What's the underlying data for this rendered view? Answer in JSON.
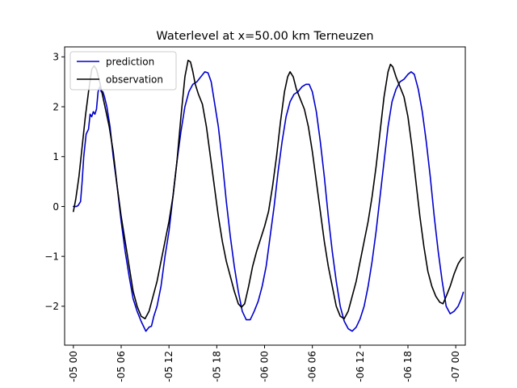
{
  "chart_data": {
    "type": "line",
    "title": "Waterlevel at x=50.00 km Terneuzen",
    "xlabel": "",
    "ylabel": "",
    "x_unit": "hours",
    "xlim": [
      -1.1,
      49.2
    ],
    "ylim": [
      -2.78,
      3.2
    ],
    "xticks": [
      {
        "value": 0,
        "label": "-05 00"
      },
      {
        "value": 6,
        "label": "-05 06"
      },
      {
        "value": 12,
        "label": "-05 12"
      },
      {
        "value": 18,
        "label": "-05 18"
      },
      {
        "value": 24,
        "label": "-06 00"
      },
      {
        "value": 30,
        "label": "-06 06"
      },
      {
        "value": 36,
        "label": "-06 12"
      },
      {
        "value": 42,
        "label": "-06 18"
      },
      {
        "value": 48,
        "label": "-07 00"
      }
    ],
    "yticks": [
      {
        "value": 3,
        "label": "3"
      },
      {
        "value": 2,
        "label": "2"
      },
      {
        "value": 1,
        "label": "1"
      },
      {
        "value": 0,
        "label": "0"
      },
      {
        "value": -1,
        "label": "−1"
      },
      {
        "value": -2,
        "label": "−2"
      }
    ],
    "grid": false,
    "legend": {
      "placement": "top-left"
    },
    "series": [
      {
        "name": "prediction",
        "color": "#0000cc",
        "points": [
          [
            0.0,
            0.0
          ],
          [
            0.4,
            0.0
          ],
          [
            0.6,
            0.02
          ],
          [
            0.9,
            0.1
          ],
          [
            1.1,
            0.5
          ],
          [
            1.3,
            1.0
          ],
          [
            1.6,
            1.45
          ],
          [
            1.9,
            1.55
          ],
          [
            2.1,
            1.85
          ],
          [
            2.3,
            1.8
          ],
          [
            2.5,
            1.9
          ],
          [
            2.7,
            1.85
          ],
          [
            2.9,
            1.95
          ],
          [
            3.1,
            2.3
          ],
          [
            3.3,
            2.4
          ],
          [
            3.5,
            2.3
          ],
          [
            3.7,
            2.3
          ],
          [
            3.9,
            2.2
          ],
          [
            4.2,
            2.0
          ],
          [
            4.6,
            1.6
          ],
          [
            5.0,
            1.0
          ],
          [
            5.5,
            0.4
          ],
          [
            6.0,
            -0.3
          ],
          [
            6.5,
            -0.9
          ],
          [
            7.0,
            -1.4
          ],
          [
            7.5,
            -1.85
          ],
          [
            8.0,
            -2.1
          ],
          [
            8.5,
            -2.3
          ],
          [
            9.1,
            -2.5
          ],
          [
            9.5,
            -2.42
          ],
          [
            9.8,
            -2.4
          ],
          [
            10.1,
            -2.2
          ],
          [
            10.5,
            -2.0
          ],
          [
            11.0,
            -1.6
          ],
          [
            11.5,
            -1.0
          ],
          [
            12.0,
            -0.5
          ],
          [
            12.5,
            0.2
          ],
          [
            13.0,
            0.9
          ],
          [
            13.5,
            1.5
          ],
          [
            14.0,
            2.0
          ],
          [
            14.5,
            2.3
          ],
          [
            15.0,
            2.45
          ],
          [
            15.5,
            2.5
          ],
          [
            16.0,
            2.6
          ],
          [
            16.5,
            2.7
          ],
          [
            16.9,
            2.68
          ],
          [
            17.3,
            2.5
          ],
          [
            17.7,
            2.1
          ],
          [
            18.2,
            1.6
          ],
          [
            18.7,
            0.9
          ],
          [
            19.2,
            0.1
          ],
          [
            19.7,
            -0.6
          ],
          [
            20.2,
            -1.2
          ],
          [
            20.7,
            -1.7
          ],
          [
            21.2,
            -2.1
          ],
          [
            21.7,
            -2.27
          ],
          [
            22.2,
            -2.27
          ],
          [
            22.7,
            -2.1
          ],
          [
            23.2,
            -1.9
          ],
          [
            23.7,
            -1.6
          ],
          [
            24.2,
            -1.2
          ],
          [
            24.7,
            -0.6
          ],
          [
            25.2,
            0.0
          ],
          [
            25.7,
            0.7
          ],
          [
            26.2,
            1.3
          ],
          [
            26.7,
            1.8
          ],
          [
            27.2,
            2.1
          ],
          [
            27.7,
            2.25
          ],
          [
            28.2,
            2.3
          ],
          [
            28.7,
            2.4
          ],
          [
            29.2,
            2.45
          ],
          [
            29.6,
            2.45
          ],
          [
            30.0,
            2.3
          ],
          [
            30.5,
            1.9
          ],
          [
            31.0,
            1.3
          ],
          [
            31.5,
            0.6
          ],
          [
            32.0,
            -0.2
          ],
          [
            32.5,
            -0.9
          ],
          [
            33.0,
            -1.5
          ],
          [
            33.5,
            -2.0
          ],
          [
            34.0,
            -2.3
          ],
          [
            34.5,
            -2.45
          ],
          [
            35.0,
            -2.5
          ],
          [
            35.5,
            -2.42
          ],
          [
            36.0,
            -2.25
          ],
          [
            36.5,
            -2.0
          ],
          [
            37.0,
            -1.6
          ],
          [
            37.5,
            -1.1
          ],
          [
            38.0,
            -0.5
          ],
          [
            38.5,
            0.2
          ],
          [
            39.0,
            0.9
          ],
          [
            39.5,
            1.6
          ],
          [
            40.0,
            2.1
          ],
          [
            40.5,
            2.35
          ],
          [
            41.0,
            2.5
          ],
          [
            41.5,
            2.55
          ],
          [
            42.0,
            2.65
          ],
          [
            42.4,
            2.7
          ],
          [
            42.8,
            2.65
          ],
          [
            43.3,
            2.35
          ],
          [
            43.8,
            1.9
          ],
          [
            44.3,
            1.3
          ],
          [
            44.8,
            0.6
          ],
          [
            45.3,
            -0.2
          ],
          [
            45.8,
            -0.9
          ],
          [
            46.3,
            -1.5
          ],
          [
            46.8,
            -2.0
          ],
          [
            47.3,
            -2.15
          ],
          [
            47.8,
            -2.1
          ],
          [
            48.3,
            -2.0
          ],
          [
            48.7,
            -1.85
          ],
          [
            48.95,
            -1.72
          ]
        ]
      },
      {
        "name": "observation",
        "color": "#000000",
        "points": [
          [
            0.0,
            -0.1
          ],
          [
            0.3,
            0.15
          ],
          [
            0.7,
            0.6
          ],
          [
            1.1,
            1.2
          ],
          [
            1.5,
            1.8
          ],
          [
            1.9,
            2.3
          ],
          [
            2.3,
            2.75
          ],
          [
            2.6,
            2.82
          ],
          [
            2.9,
            2.75
          ],
          [
            3.3,
            2.5
          ],
          [
            3.7,
            2.2
          ],
          [
            4.1,
            1.9
          ],
          [
            4.5,
            1.6
          ],
          [
            5.0,
            1.1
          ],
          [
            5.5,
            0.4
          ],
          [
            6.0,
            -0.2
          ],
          [
            6.5,
            -0.7
          ],
          [
            7.0,
            -1.2
          ],
          [
            7.5,
            -1.7
          ],
          [
            8.0,
            -2.0
          ],
          [
            8.5,
            -2.2
          ],
          [
            9.0,
            -2.25
          ],
          [
            9.5,
            -2.1
          ],
          [
            10.0,
            -1.8
          ],
          [
            10.5,
            -1.5
          ],
          [
            11.0,
            -1.1
          ],
          [
            11.5,
            -0.7
          ],
          [
            12.0,
            -0.3
          ],
          [
            12.5,
            0.2
          ],
          [
            13.0,
            0.9
          ],
          [
            13.5,
            1.8
          ],
          [
            14.0,
            2.6
          ],
          [
            14.4,
            2.93
          ],
          [
            14.7,
            2.9
          ],
          [
            15.0,
            2.7
          ],
          [
            15.3,
            2.45
          ],
          [
            15.7,
            2.25
          ],
          [
            16.2,
            2.05
          ],
          [
            16.7,
            1.6
          ],
          [
            17.2,
            1.0
          ],
          [
            17.7,
            0.4
          ],
          [
            18.2,
            -0.2
          ],
          [
            18.7,
            -0.7
          ],
          [
            19.2,
            -1.1
          ],
          [
            19.7,
            -1.4
          ],
          [
            20.2,
            -1.7
          ],
          [
            20.7,
            -1.95
          ],
          [
            21.1,
            -2.02
          ],
          [
            21.5,
            -1.95
          ],
          [
            22.0,
            -1.6
          ],
          [
            22.5,
            -1.2
          ],
          [
            23.0,
            -0.9
          ],
          [
            23.5,
            -0.65
          ],
          [
            24.0,
            -0.4
          ],
          [
            24.5,
            -0.1
          ],
          [
            25.0,
            0.4
          ],
          [
            25.5,
            1.0
          ],
          [
            26.0,
            1.7
          ],
          [
            26.5,
            2.3
          ],
          [
            26.9,
            2.6
          ],
          [
            27.2,
            2.7
          ],
          [
            27.6,
            2.6
          ],
          [
            28.0,
            2.35
          ],
          [
            28.5,
            2.15
          ],
          [
            29.0,
            1.95
          ],
          [
            29.5,
            1.6
          ],
          [
            30.0,
            1.1
          ],
          [
            30.5,
            0.5
          ],
          [
            31.0,
            -0.1
          ],
          [
            31.5,
            -0.7
          ],
          [
            32.0,
            -1.2
          ],
          [
            32.5,
            -1.6
          ],
          [
            33.0,
            -2.0
          ],
          [
            33.5,
            -2.2
          ],
          [
            34.0,
            -2.25
          ],
          [
            34.5,
            -2.1
          ],
          [
            35.0,
            -1.8
          ],
          [
            35.5,
            -1.5
          ],
          [
            36.0,
            -1.1
          ],
          [
            36.5,
            -0.7
          ],
          [
            37.0,
            -0.3
          ],
          [
            37.5,
            0.2
          ],
          [
            38.0,
            0.8
          ],
          [
            38.5,
            1.5
          ],
          [
            39.0,
            2.2
          ],
          [
            39.5,
            2.7
          ],
          [
            39.8,
            2.85
          ],
          [
            40.1,
            2.8
          ],
          [
            40.5,
            2.6
          ],
          [
            41.0,
            2.4
          ],
          [
            41.5,
            2.2
          ],
          [
            42.0,
            1.8
          ],
          [
            42.5,
            1.2
          ],
          [
            43.0,
            0.5
          ],
          [
            43.5,
            -0.2
          ],
          [
            44.0,
            -0.8
          ],
          [
            44.5,
            -1.3
          ],
          [
            45.0,
            -1.6
          ],
          [
            45.5,
            -1.8
          ],
          [
            46.0,
            -1.92
          ],
          [
            46.4,
            -1.95
          ],
          [
            46.8,
            -1.8
          ],
          [
            47.3,
            -1.6
          ],
          [
            47.8,
            -1.35
          ],
          [
            48.3,
            -1.15
          ],
          [
            48.7,
            -1.05
          ],
          [
            48.95,
            -1.02
          ]
        ]
      }
    ]
  }
}
